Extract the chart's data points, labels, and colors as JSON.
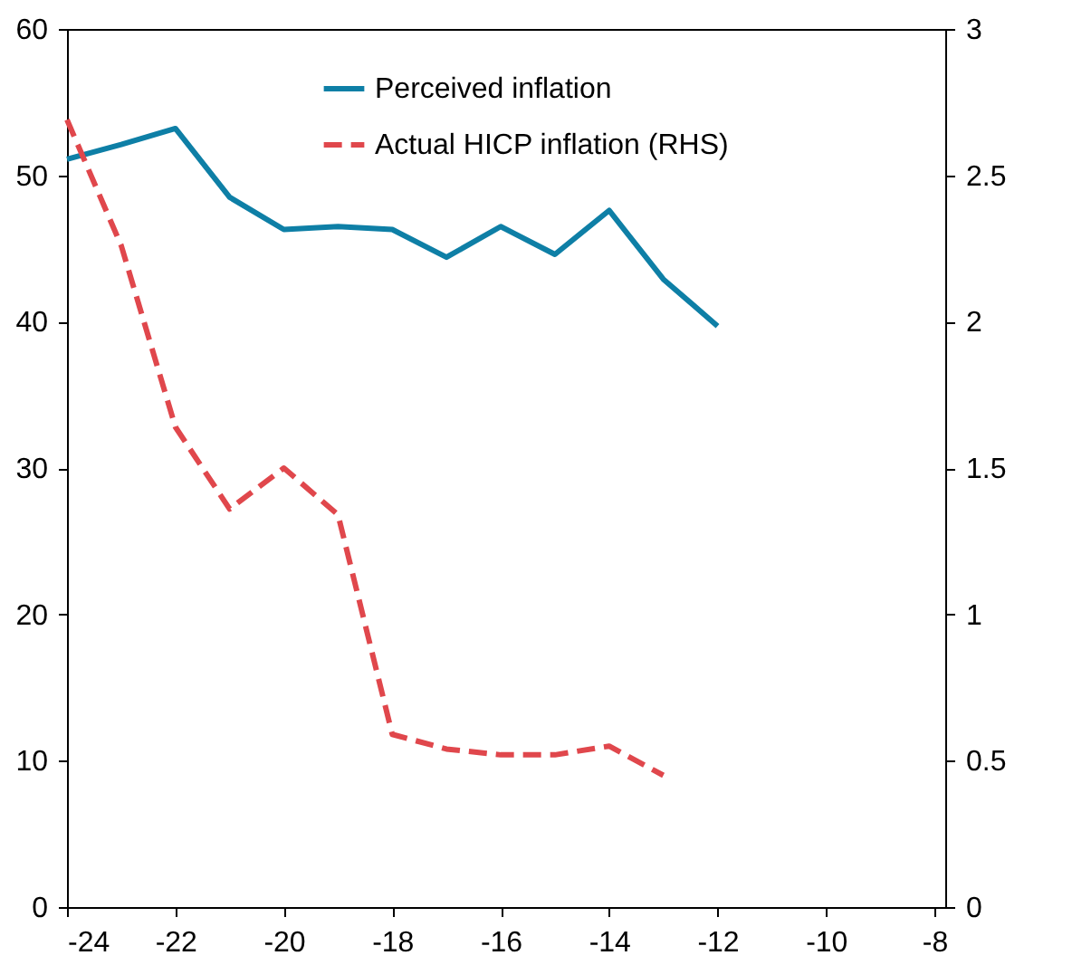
{
  "chart_data": {
    "type": "line",
    "x": [
      -24,
      -23,
      -22,
      -21,
      -20,
      -19,
      -18,
      -17,
      -16,
      -15,
      -14,
      -13,
      -12
    ],
    "series": [
      {
        "name": "Perceived inflation",
        "color": "#0e7fa6",
        "line_style": "solid",
        "values": [
          51.1,
          52.1,
          53.2,
          48.5,
          46.3,
          46.5,
          46.3,
          44.4,
          46.5,
          44.6,
          47.6,
          42.9,
          39.7
        ]
      },
      {
        "name": "Actual HICP inflation (RHS)",
        "color": "#e0474c",
        "line_style": "dashed",
        "axis": "y2",
        "values": [
          2.69,
          2.26,
          1.64,
          1.36,
          1.5,
          1.34,
          0.59,
          0.54,
          0.52,
          0.52,
          0.55,
          0.45,
          null
        ]
      }
    ],
    "xlim": [
      -24,
      -7.8
    ],
    "xticks": [
      -24,
      -22,
      -20,
      -18,
      -16,
      -14,
      -12,
      -10,
      -8
    ],
    "ylim": [
      0,
      60
    ],
    "yticks": [
      0,
      10,
      20,
      30,
      40,
      50,
      60
    ],
    "y2lim": [
      0,
      3
    ],
    "y2ticks": [
      0,
      0.5,
      1,
      1.5,
      2,
      2.5,
      3
    ],
    "grid": false,
    "legend": "top",
    "marker": "none"
  }
}
